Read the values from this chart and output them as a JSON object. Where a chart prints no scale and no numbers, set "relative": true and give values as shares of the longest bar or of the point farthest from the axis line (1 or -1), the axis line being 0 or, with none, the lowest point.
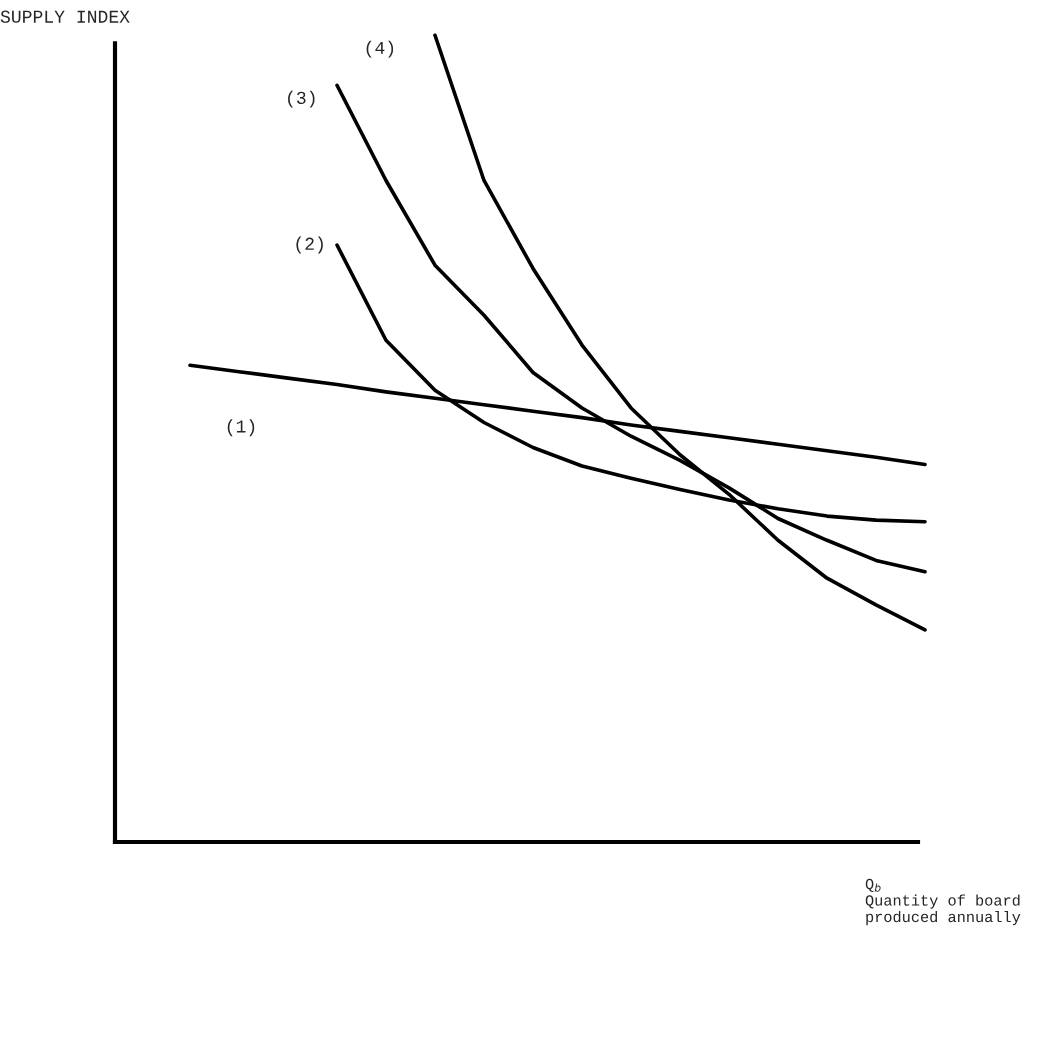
{
  "chart_data": {
    "type": "line",
    "relative": true,
    "ylabel": "SUPPLY INDEX",
    "xlabel": "Q$_{b}$\nQuantity of board\nproduced annually",
    "categories": [
      null,
      null,
      null,
      null,
      null,
      null,
      null,
      null,
      null,
      null,
      null,
      null,
      null,
      null,
      null,
      null
    ],
    "legend": false,
    "marker": "none",
    "line_style": "solid",
    "series": [
      {
        "name": "(1)",
        "color": "#000000",
        "values": [
          0.591,
          0.583,
          0.575,
          0.567,
          0.558,
          0.55,
          0.542,
          0.534,
          0.526,
          0.517,
          0.509,
          0.501,
          0.493,
          0.485,
          0.477,
          0.468
        ]
      },
      {
        "name": "(2)",
        "color": "#000000",
        "values": [
          null,
          null,
          null,
          0.74,
          0.622,
          0.56,
          0.52,
          0.489,
          0.466,
          0.451,
          0.437,
          0.424,
          0.413,
          0.404,
          0.399,
          0.397
        ]
      },
      {
        "name": "(3)",
        "color": "#000000",
        "values": [
          null,
          null,
          null,
          0.938,
          0.82,
          0.715,
          0.653,
          0.582,
          0.538,
          0.503,
          0.473,
          0.439,
          0.401,
          0.374,
          0.349,
          0.335
        ]
      },
      {
        "name": "(4)",
        "color": "#000000",
        "values": [
          null,
          null,
          null,
          null,
          null,
          1.0,
          0.82,
          0.711,
          0.616,
          0.538,
          0.48,
          0.431,
          0.374,
          0.327,
          0.294,
          0.263
        ]
      }
    ]
  }
}
